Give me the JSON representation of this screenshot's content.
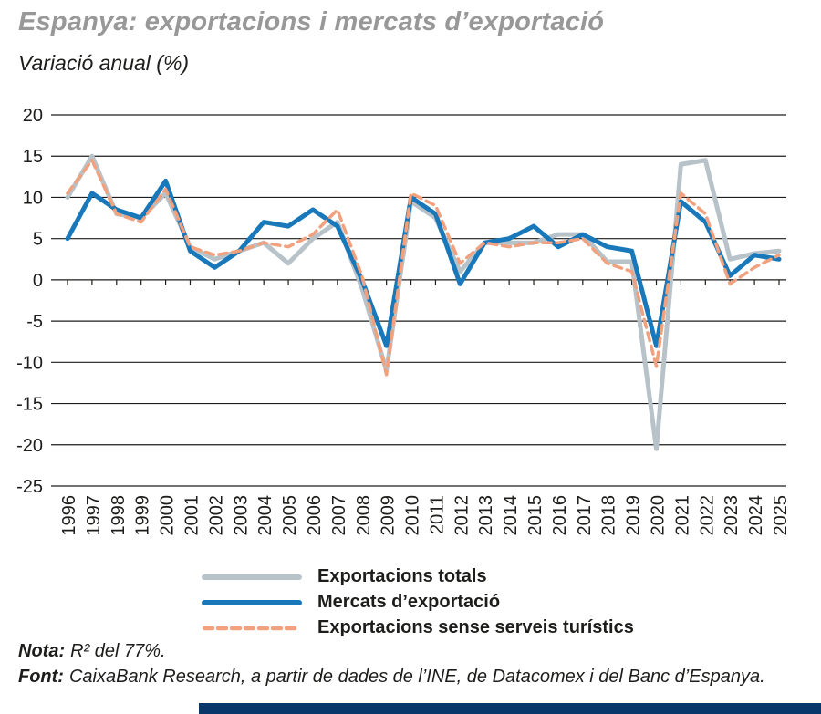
{
  "chart_data": {
    "type": "line",
    "title": "Espanya: exportacions i mercats d’exportació",
    "subtitle": "Variació anual (%)",
    "x": [
      "1996",
      "1997",
      "1998",
      "1999",
      "2000",
      "2001",
      "2002",
      "2003",
      "2004",
      "2005",
      "2006",
      "2007",
      "2008",
      "2009",
      "2010",
      "2011",
      "2012",
      "2013",
      "2014",
      "2015",
      "2016",
      "2017",
      "2018",
      "2019",
      "2020",
      "2021",
      "2022",
      "2023",
      "2024",
      "2025"
    ],
    "yticks": [
      20,
      15,
      10,
      5,
      0,
      -5,
      -10,
      -15,
      -20,
      -25
    ],
    "ylim": [
      -25,
      20
    ],
    "grid": "horizontal",
    "legend_position": "bottom",
    "series": [
      {
        "name": "Exportacions totals",
        "color": "#b8c3c9",
        "style": "solid",
        "width": 5,
        "values": [
          10,
          15,
          8,
          7.5,
          10.5,
          4,
          2.5,
          3.5,
          4.5,
          2,
          5,
          7,
          -1,
          -11,
          9.5,
          7.5,
          1,
          4.5,
          4.5,
          4.5,
          5.5,
          5.5,
          2.2,
          2.2,
          -20.5,
          14,
          14.5,
          2.5,
          3.2,
          3.5
        ]
      },
      {
        "name": "Mercats d’exportació",
        "color": "#1878ba",
        "style": "solid",
        "width": 5,
        "values": [
          5,
          10.5,
          8.5,
          7.5,
          12,
          3.5,
          1.5,
          3.5,
          7,
          6.5,
          8.5,
          6.5,
          0,
          -8,
          10,
          8,
          -0.5,
          4.5,
          5,
          6.5,
          4,
          5.5,
          4,
          3.5,
          -8,
          9.5,
          7,
          0.5,
          3,
          2.5
        ]
      },
      {
        "name": "Exportacions sense serveis turístics",
        "color": "#f1a17e",
        "style": "dashed",
        "width": 3.5,
        "dash": "9 6",
        "values": [
          10.5,
          14.5,
          8,
          7,
          11,
          4,
          3,
          3.5,
          4.5,
          4,
          5.5,
          8.5,
          0.5,
          -11.5,
          10.5,
          9,
          2,
          4.5,
          4,
          4.5,
          4.5,
          5,
          2,
          1,
          -10.5,
          10.5,
          8,
          -0.5,
          1.5,
          3
        ]
      }
    ]
  },
  "notes": {
    "nota_label": "Nota:",
    "nota_text": "R² del 77%.",
    "font_label": "Font:",
    "font_text": "CaixaBank Research, a partir de dades de l’INE, de Datacomex i del Banc d’Espanya."
  },
  "palette": {
    "title_gray": "#989898",
    "text_dark": "#1d1d1b",
    "footer_navy": "#08386b"
  }
}
